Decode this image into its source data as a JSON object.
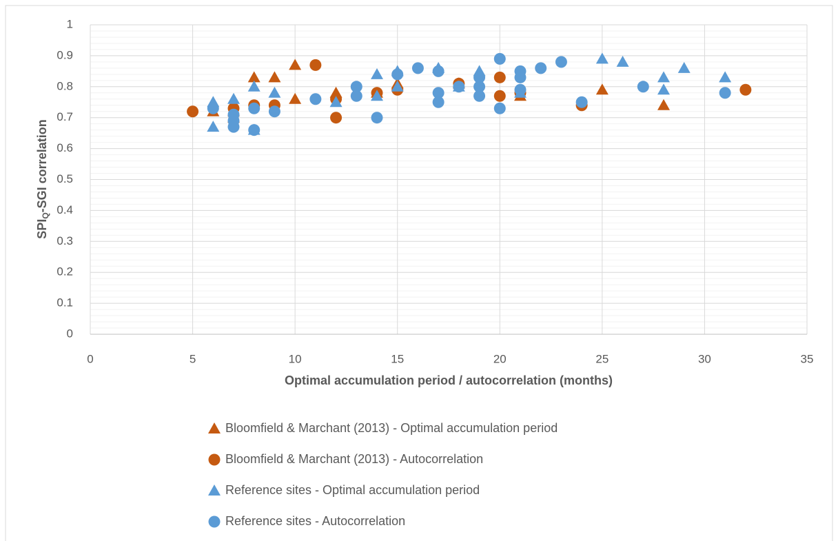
{
  "chart_data": {
    "type": "scatter",
    "xlabel": "Optimal accumulation period / autocorrelation (months)",
    "ylabel": [
      "SPI",
      "Q",
      "-SGI correlation"
    ],
    "xlim": [
      0,
      35
    ],
    "xticks": [
      0,
      5,
      10,
      15,
      20,
      25,
      30,
      35
    ],
    "ylim": [
      0,
      1
    ],
    "yticks": [
      0,
      0.1,
      0.2,
      0.3,
      0.4,
      0.5,
      0.6,
      0.7,
      0.8,
      0.9,
      1
    ],
    "grid": true,
    "minor_grid_step": 0.02,
    "legend": "bottom",
    "series": [
      {
        "name": "Bloomfield & Marchant (2013) - Optimal accumulation period",
        "color": "#c55a11",
        "marker": "triangle",
        "x": [
          6,
          7,
          7,
          8,
          9,
          10,
          10,
          12,
          14,
          15,
          18,
          21,
          25,
          28
        ],
        "y": [
          0.72,
          0.72,
          0.7,
          0.83,
          0.83,
          0.87,
          0.76,
          0.78,
          0.78,
          0.81,
          0.81,
          0.77,
          0.79,
          0.74
        ]
      },
      {
        "name": "Bloomfield & Marchant (2013) - Autocorrelation",
        "color": "#c55a11",
        "marker": "circle",
        "x": [
          5,
          7,
          8,
          9,
          11,
          12,
          12,
          14,
          15,
          18,
          20,
          20,
          21,
          24,
          32
        ],
        "y": [
          0.72,
          0.73,
          0.74,
          0.74,
          0.87,
          0.7,
          0.76,
          0.78,
          0.79,
          0.81,
          0.83,
          0.77,
          0.78,
          0.74,
          0.79
        ]
      },
      {
        "name": "Reference sites - Optimal accumulation period",
        "color": "#5b9bd5",
        "marker": "triangle",
        "x": [
          6,
          6,
          7,
          8,
          8,
          9,
          12,
          14,
          14,
          15,
          15,
          17,
          18,
          19,
          21,
          25,
          26,
          28,
          28,
          29,
          31
        ],
        "y": [
          0.75,
          0.67,
          0.76,
          0.8,
          0.66,
          0.78,
          0.75,
          0.84,
          0.77,
          0.85,
          0.8,
          0.86,
          0.8,
          0.85,
          0.78,
          0.89,
          0.88,
          0.83,
          0.79,
          0.86,
          0.83
        ]
      },
      {
        "name": "Reference sites - Autocorrelation",
        "color": "#5b9bd5",
        "marker": "circle",
        "x": [
          6,
          7,
          7,
          7,
          8,
          8,
          9,
          11,
          13,
          13,
          14,
          15,
          16,
          17,
          17,
          17,
          18,
          19,
          19,
          19,
          20,
          20,
          21,
          21,
          21,
          22,
          23,
          24,
          27,
          31
        ],
        "y": [
          0.73,
          0.71,
          0.69,
          0.67,
          0.73,
          0.66,
          0.72,
          0.76,
          0.8,
          0.77,
          0.7,
          0.84,
          0.86,
          0.85,
          0.78,
          0.75,
          0.8,
          0.83,
          0.8,
          0.77,
          0.89,
          0.73,
          0.85,
          0.83,
          0.79,
          0.86,
          0.88,
          0.75,
          0.8,
          0.78
        ]
      }
    ]
  }
}
